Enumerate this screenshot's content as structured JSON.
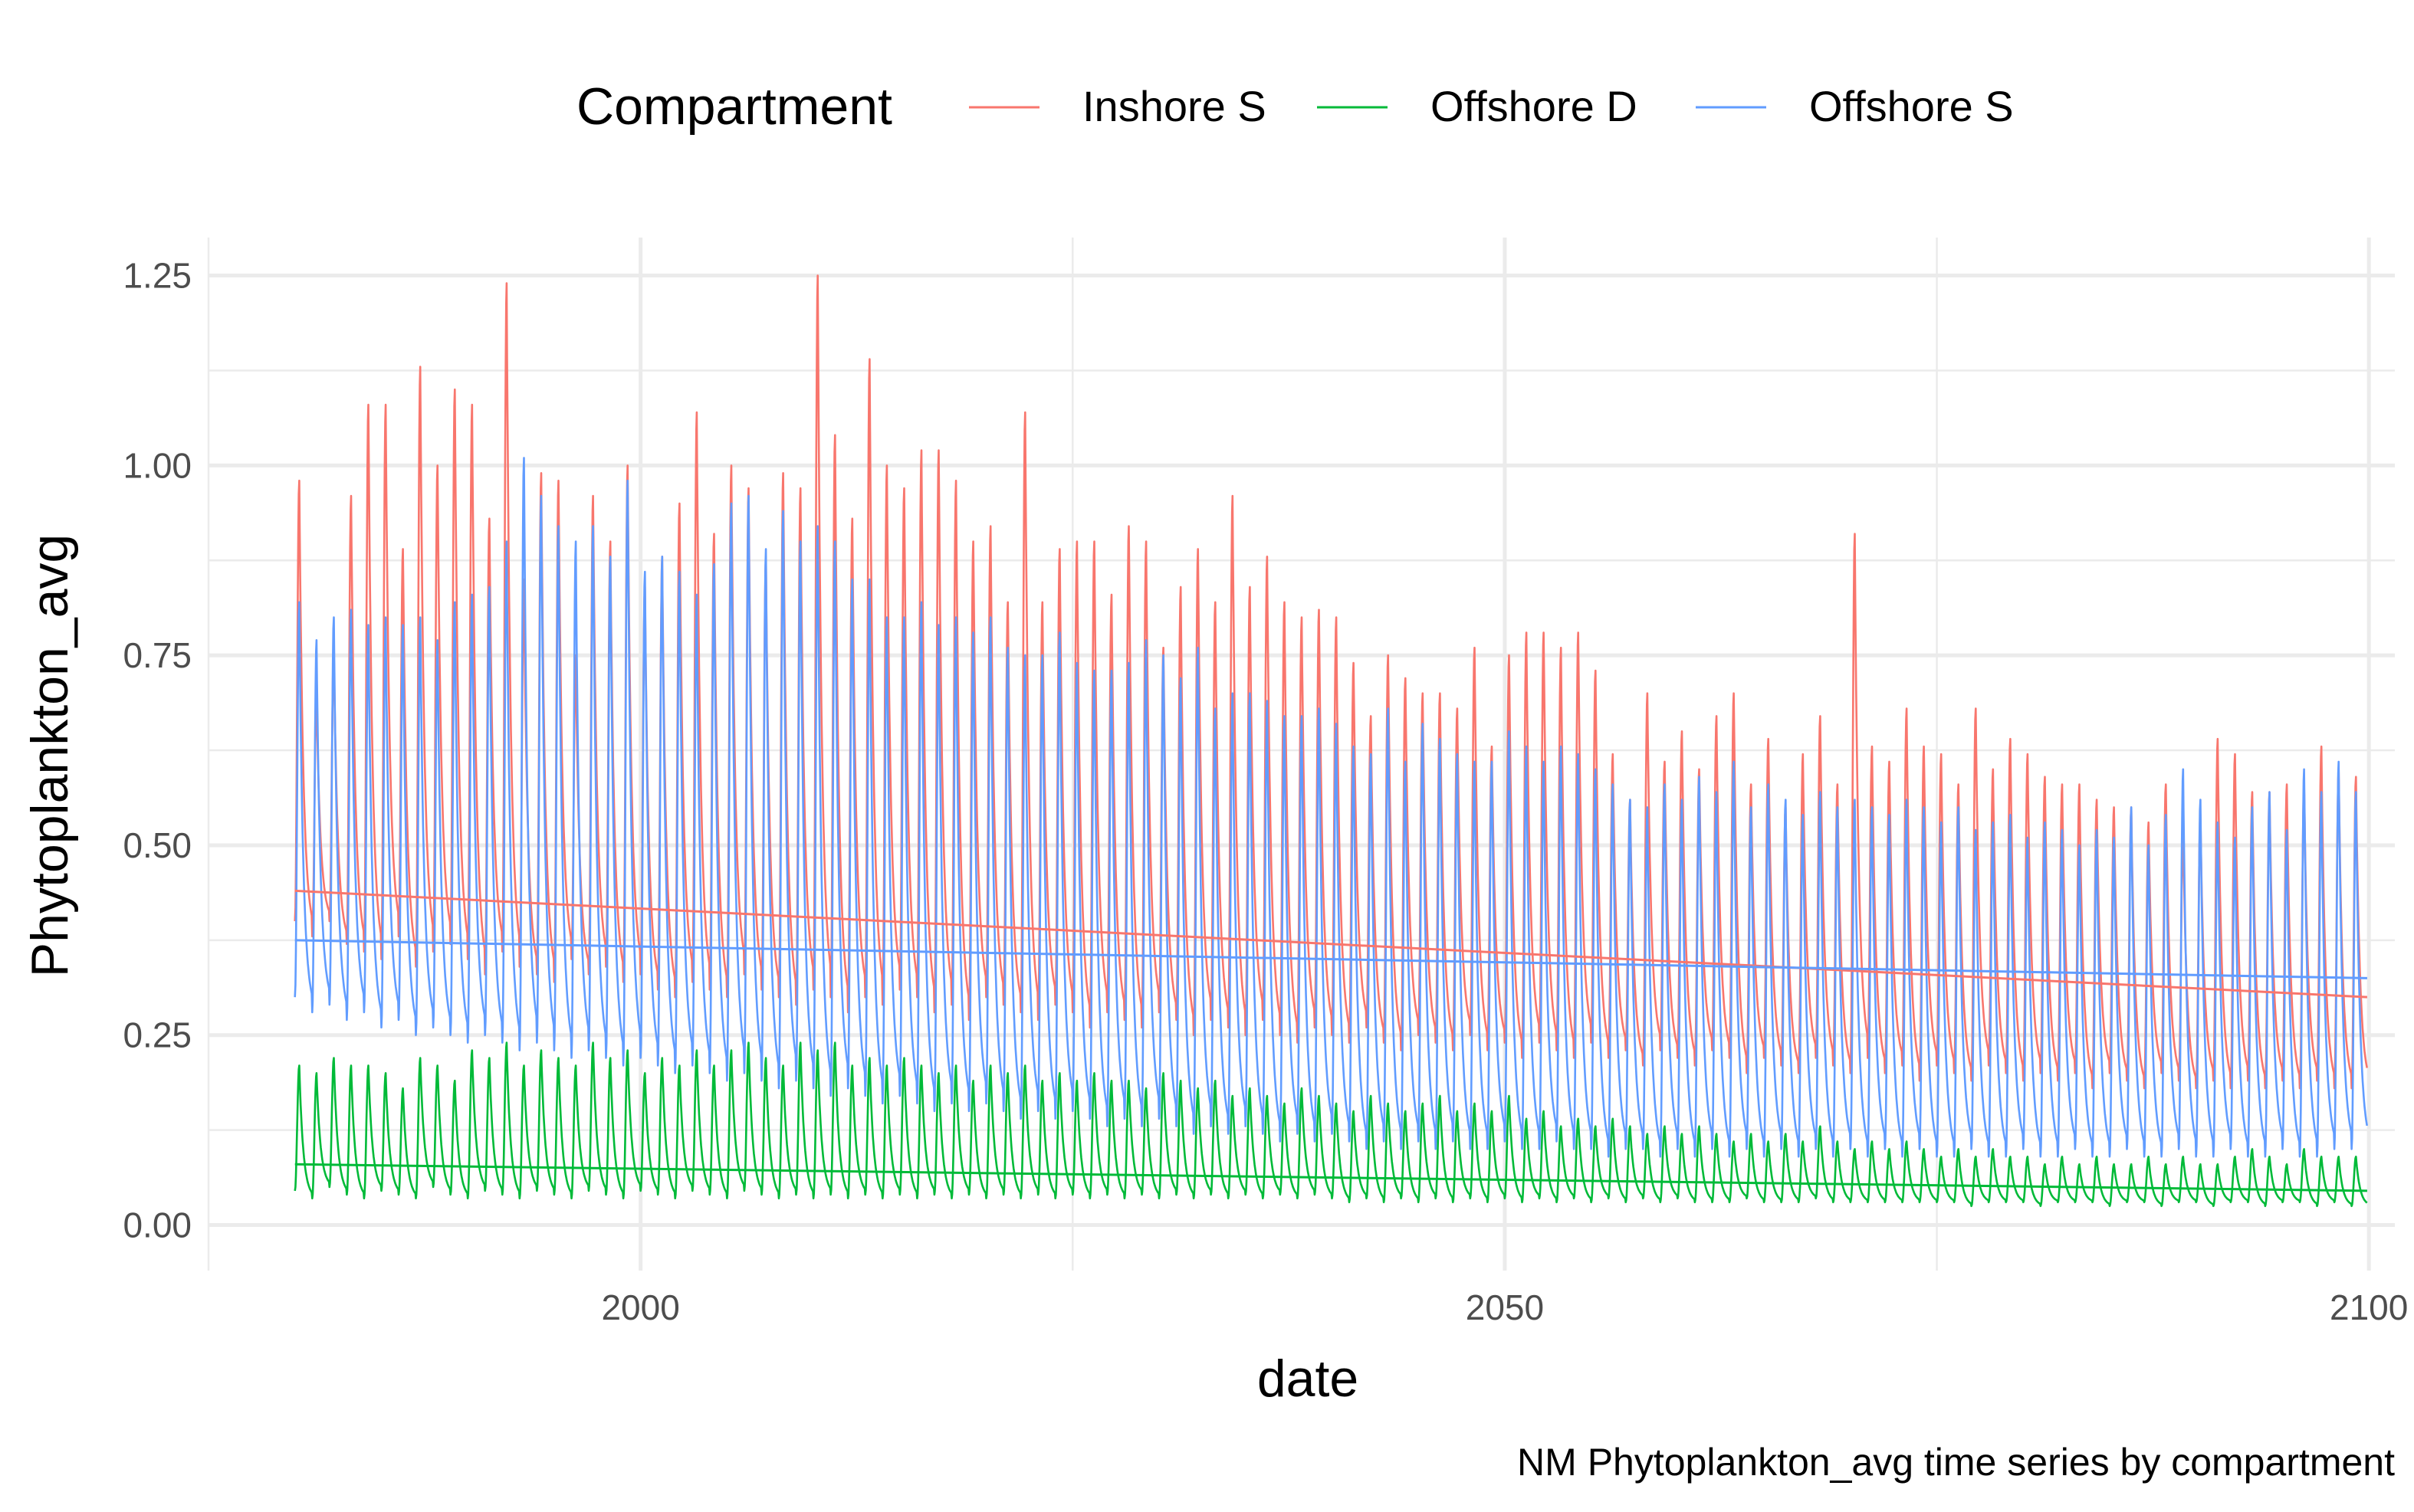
{
  "chart_data": {
    "type": "line",
    "title": "",
    "caption": "NM Phytoplankton_avg time series by compartment",
    "xlabel": "date",
    "ylabel": "Phytoplankton_avg",
    "xlim": [
      1975,
      2101.5
    ],
    "ylim": [
      -0.06,
      1.3
    ],
    "x_ticks": [
      2000,
      2050,
      2100
    ],
    "x_tick_labels": [
      "2000",
      "2050",
      "2100"
    ],
    "x_minor_ticks": [
      1975,
      2025,
      2075
    ],
    "y_ticks": [
      0,
      0.25,
      0.5,
      0.75,
      1.0,
      1.25
    ],
    "y_tick_labels": [
      "0.00",
      "0.25",
      "0.50",
      "0.75",
      "1.00",
      "1.25"
    ],
    "y_minor_ticks": [
      0.125,
      0.375,
      0.625,
      0.875,
      1.125
    ],
    "grid": true,
    "legend": {
      "title": "Compartment",
      "position": "top"
    },
    "time_range": [
      1980,
      2099.9
    ],
    "series": [
      {
        "name": "Inshore S",
        "color": "#F8766D",
        "trend": [
          [
            1980,
            0.44
          ],
          [
            2099.9,
            0.3
          ]
        ],
        "seasonal_min": [
          [
            1980,
            0.36
          ],
          [
            2030,
            0.3
          ],
          [
            2099.9,
            0.2
          ]
        ],
        "annual_peaks": [
          0.98,
          0.7,
          0.76,
          0.96,
          1.08,
          1.08,
          0.89,
          1.13,
          1.0,
          1.1,
          1.08,
          0.93,
          1.24,
          0.85,
          0.99,
          0.98,
          0.75,
          0.96,
          0.9,
          1.0,
          0.84,
          0.88,
          0.95,
          1.07,
          0.91,
          1.0,
          0.97,
          0.88,
          0.99,
          0.97,
          1.25,
          1.04,
          0.93,
          1.14,
          1.0,
          0.97,
          1.02,
          1.02,
          0.98,
          0.9,
          0.92,
          0.82,
          1.07,
          0.82,
          0.89,
          0.9,
          0.9,
          0.83,
          0.92,
          0.9,
          0.76,
          0.84,
          0.89,
          0.82,
          0.96,
          0.84,
          0.88,
          0.82,
          0.8,
          0.81,
          0.8,
          0.74,
          0.67,
          0.75,
          0.72,
          0.7,
          0.7,
          0.68,
          0.76,
          0.63,
          0.75,
          0.78,
          0.78,
          0.76,
          0.78,
          0.73,
          0.62,
          0.56,
          0.7,
          0.61,
          0.65,
          0.6,
          0.67,
          0.7,
          0.58,
          0.64,
          0.55,
          0.62,
          0.67,
          0.58,
          0.91,
          0.63,
          0.61,
          0.68,
          0.63,
          0.62,
          0.58,
          0.68,
          0.6,
          0.64,
          0.62,
          0.59,
          0.58,
          0.58,
          0.56,
          0.55,
          0.55,
          0.53,
          0.58,
          0.52,
          0.54,
          0.64,
          0.62,
          0.57,
          0.57,
          0.58,
          0.58,
          0.63,
          0.6,
          0.59
        ],
        "annual_troughs": [
          0.4,
          0.38,
          0.4,
          0.37,
          0.36,
          0.35,
          0.38,
          0.34,
          0.36,
          0.37,
          0.35,
          0.33,
          0.36,
          0.34,
          0.33,
          0.32,
          0.35,
          0.33,
          0.34,
          0.32,
          0.33,
          0.31,
          0.3,
          0.32,
          0.31,
          0.3,
          0.33,
          0.31,
          0.3,
          0.29,
          0.31,
          0.3,
          0.28,
          0.3,
          0.29,
          0.31,
          0.3,
          0.28,
          0.29,
          0.27,
          0.3,
          0.29,
          0.28,
          0.27,
          0.29,
          0.28,
          0.26,
          0.28,
          0.27,
          0.26,
          0.28,
          0.27,
          0.25,
          0.27,
          0.26,
          0.25,
          0.27,
          0.25,
          0.24,
          0.26,
          0.25,
          0.24,
          0.26,
          0.24,
          0.23,
          0.25,
          0.24,
          0.23,
          0.25,
          0.23,
          0.24,
          0.22,
          0.24,
          0.23,
          0.22,
          0.24,
          0.22,
          0.23,
          0.21,
          0.23,
          0.22,
          0.21,
          0.23,
          0.22,
          0.2,
          0.22,
          0.21,
          0.2,
          0.22,
          0.21,
          0.2,
          0.22,
          0.2,
          0.21,
          0.19,
          0.21,
          0.2,
          0.19,
          0.21,
          0.2,
          0.19,
          0.2,
          0.19,
          0.2,
          0.18,
          0.2,
          0.19,
          0.18,
          0.2,
          0.19,
          0.18,
          0.19,
          0.18,
          0.19,
          0.18,
          0.19,
          0.18,
          0.19,
          0.18,
          0.18
        ]
      },
      {
        "name": "Offshore D",
        "color": "#00BA38",
        "trend": [
          [
            1980,
            0.08
          ],
          [
            2099.9,
            0.045
          ]
        ],
        "annual_peaks": [
          0.21,
          0.2,
          0.22,
          0.21,
          0.21,
          0.2,
          0.18,
          0.22,
          0.21,
          0.19,
          0.23,
          0.22,
          0.24,
          0.21,
          0.23,
          0.22,
          0.21,
          0.24,
          0.22,
          0.23,
          0.2,
          0.22,
          0.21,
          0.23,
          0.21,
          0.23,
          0.24,
          0.22,
          0.21,
          0.24,
          0.23,
          0.24,
          0.21,
          0.22,
          0.21,
          0.22,
          0.21,
          0.2,
          0.21,
          0.19,
          0.21,
          0.2,
          0.21,
          0.19,
          0.2,
          0.19,
          0.2,
          0.19,
          0.19,
          0.18,
          0.2,
          0.19,
          0.18,
          0.19,
          0.17,
          0.18,
          0.17,
          0.16,
          0.18,
          0.17,
          0.16,
          0.15,
          0.17,
          0.16,
          0.15,
          0.16,
          0.17,
          0.15,
          0.16,
          0.15,
          0.17,
          0.14,
          0.15,
          0.13,
          0.14,
          0.13,
          0.14,
          0.13,
          0.12,
          0.13,
          0.12,
          0.13,
          0.12,
          0.11,
          0.12,
          0.11,
          0.12,
          0.11,
          0.13,
          0.11,
          0.1,
          0.11,
          0.1,
          0.11,
          0.1,
          0.09,
          0.1,
          0.09,
          0.1,
          0.09,
          0.09,
          0.08,
          0.09,
          0.08,
          0.09,
          0.08,
          0.08,
          0.09,
          0.08,
          0.09,
          0.08,
          0.08,
          0.09,
          0.1,
          0.09,
          0.08,
          0.1,
          0.09,
          0.09,
          0.09
        ],
        "annual_troughs": [
          0.045,
          0.035,
          0.05,
          0.04,
          0.035,
          0.045,
          0.04,
          0.035,
          0.05,
          0.04,
          0.035,
          0.045,
          0.04,
          0.035,
          0.045,
          0.04,
          0.035,
          0.045,
          0.04,
          0.035,
          0.045,
          0.04,
          0.035,
          0.045,
          0.04,
          0.035,
          0.045,
          0.04,
          0.035,
          0.04,
          0.035,
          0.04,
          0.035,
          0.04,
          0.035,
          0.04,
          0.035,
          0.04,
          0.035,
          0.04,
          0.035,
          0.04,
          0.035,
          0.04,
          0.035,
          0.04,
          0.035,
          0.04,
          0.035,
          0.04,
          0.035,
          0.04,
          0.035,
          0.04,
          0.035,
          0.04,
          0.035,
          0.04,
          0.035,
          0.04,
          0.035,
          0.03,
          0.035,
          0.03,
          0.035,
          0.03,
          0.035,
          0.03,
          0.035,
          0.03,
          0.035,
          0.03,
          0.035,
          0.03,
          0.035,
          0.03,
          0.035,
          0.03,
          0.035,
          0.03,
          0.035,
          0.03,
          0.03,
          0.03,
          0.035,
          0.03,
          0.03,
          0.03,
          0.035,
          0.03,
          0.03,
          0.03,
          0.03,
          0.03,
          0.03,
          0.03,
          0.03,
          0.025,
          0.03,
          0.03,
          0.03,
          0.025,
          0.03,
          0.03,
          0.03,
          0.025,
          0.03,
          0.03,
          0.025,
          0.03,
          0.03,
          0.025,
          0.03,
          0.03,
          0.025,
          0.03,
          0.03,
          0.025,
          0.03,
          0.025
        ]
      },
      {
        "name": "Offshore S",
        "color": "#619CFF",
        "trend": [
          [
            1980,
            0.375
          ],
          [
            2099.9,
            0.325
          ]
        ],
        "annual_peaks": [
          0.82,
          0.77,
          0.8,
          0.81,
          0.79,
          0.8,
          0.79,
          0.8,
          0.77,
          0.82,
          0.83,
          0.84,
          0.9,
          1.01,
          0.96,
          0.92,
          0.9,
          0.92,
          0.88,
          0.98,
          0.86,
          0.88,
          0.86,
          0.83,
          0.87,
          0.95,
          0.96,
          0.89,
          0.94,
          0.9,
          0.92,
          0.9,
          0.85,
          0.85,
          0.8,
          0.8,
          0.82,
          0.79,
          0.8,
          0.78,
          0.8,
          0.76,
          0.75,
          0.75,
          0.78,
          0.74,
          0.73,
          0.73,
          0.74,
          0.77,
          0.75,
          0.72,
          0.76,
          0.68,
          0.7,
          0.7,
          0.69,
          0.67,
          0.67,
          0.68,
          0.66,
          0.63,
          0.62,
          0.68,
          0.61,
          0.66,
          0.64,
          0.62,
          0.61,
          0.61,
          0.65,
          0.63,
          0.61,
          0.63,
          0.62,
          0.6,
          0.58,
          0.56,
          0.55,
          0.58,
          0.56,
          0.59,
          0.57,
          0.61,
          0.55,
          0.58,
          0.56,
          0.54,
          0.57,
          0.55,
          0.56,
          0.55,
          0.54,
          0.56,
          0.55,
          0.53,
          0.55,
          0.52,
          0.53,
          0.54,
          0.51,
          0.53,
          0.52,
          0.5,
          0.52,
          0.51,
          0.55,
          0.5,
          0.54,
          0.6,
          0.56,
          0.53,
          0.51,
          0.55,
          0.57,
          0.52,
          0.6,
          0.57,
          0.61,
          0.57
        ],
        "annual_troughs": [
          0.3,
          0.28,
          0.29,
          0.27,
          0.28,
          0.26,
          0.27,
          0.25,
          0.26,
          0.25,
          0.24,
          0.25,
          0.24,
          0.23,
          0.24,
          0.23,
          0.22,
          0.23,
          0.22,
          0.21,
          0.22,
          0.21,
          0.2,
          0.21,
          0.2,
          0.19,
          0.2,
          0.19,
          0.18,
          0.19,
          0.18,
          0.17,
          0.18,
          0.17,
          0.16,
          0.17,
          0.16,
          0.15,
          0.16,
          0.15,
          0.16,
          0.15,
          0.14,
          0.15,
          0.14,
          0.15,
          0.14,
          0.13,
          0.14,
          0.13,
          0.14,
          0.13,
          0.12,
          0.13,
          0.12,
          0.13,
          0.12,
          0.11,
          0.12,
          0.11,
          0.12,
          0.11,
          0.1,
          0.11,
          0.1,
          0.11,
          0.1,
          0.11,
          0.1,
          0.1,
          0.11,
          0.1,
          0.1,
          0.11,
          0.1,
          0.1,
          0.09,
          0.1,
          0.1,
          0.09,
          0.1,
          0.09,
          0.1,
          0.09,
          0.1,
          0.09,
          0.1,
          0.09,
          0.1,
          0.09,
          0.1,
          0.09,
          0.1,
          0.09,
          0.1,
          0.09,
          0.09,
          0.1,
          0.09,
          0.09,
          0.1,
          0.09,
          0.09,
          0.1,
          0.09,
          0.09,
          0.1,
          0.09,
          0.09,
          0.1,
          0.09,
          0.09,
          0.1,
          0.09,
          0.09,
          0.1,
          0.09,
          0.09,
          0.1,
          0.1
        ]
      }
    ]
  }
}
